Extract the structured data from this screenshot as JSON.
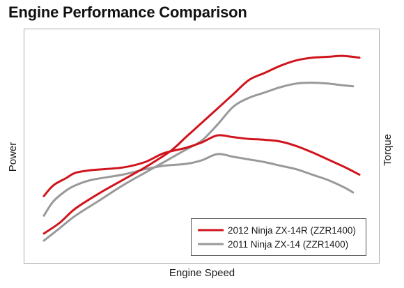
{
  "chart_data": {
    "type": "line",
    "title": "Engine Performance Comparison",
    "xlabel": "Engine Speed",
    "ylabel": "Power",
    "y2label": "Torque",
    "legend_position": "bottom-right",
    "grid": false,
    "xlim": [
      0,
      100
    ],
    "ylim": [
      0,
      100
    ],
    "series": [
      {
        "name": "2012 Ninja ZX-14R (ZZR1400)",
        "metric": "Power",
        "color": "#d0141c",
        "x": [
          0,
          5,
          10,
          18,
          25,
          32,
          40,
          45,
          50,
          55,
          60,
          65,
          70,
          75,
          80,
          85,
          90,
          95,
          100
        ],
        "y": [
          2,
          8,
          16,
          25,
          32,
          39,
          48,
          56,
          64,
          72,
          80,
          88,
          92,
          96,
          99,
          100.5,
          101,
          101.5,
          100.5
        ]
      },
      {
        "name": "2011 Ninja ZX-14 (ZZR1400)",
        "metric": "Power",
        "color": "#999999",
        "x": [
          0,
          5,
          10,
          18,
          25,
          32,
          40,
          45,
          50,
          55,
          60,
          65,
          70,
          75,
          80,
          85,
          90,
          95,
          98
        ],
        "y": [
          -2,
          5,
          12,
          21,
          29,
          36,
          44,
          49,
          54,
          63,
          73,
          78,
          81,
          84,
          86,
          86.5,
          86,
          85,
          84.5
        ]
      },
      {
        "name": "2012 Ninja ZX-14R (ZZR1400)",
        "metric": "Torque",
        "color": "#d0141c",
        "x": [
          0,
          3,
          7,
          10,
          15,
          25,
          32,
          38,
          45,
          50,
          55,
          60,
          65,
          70,
          75,
          80,
          85,
          90,
          95,
          100
        ],
        "y": [
          23,
          29,
          33,
          36,
          37.5,
          39,
          42,
          47,
          50,
          53,
          57,
          56,
          55,
          54.5,
          53.5,
          51,
          47.5,
          43.5,
          39.5,
          35
        ]
      },
      {
        "name": "2011 Ninja ZX-14 (ZZR1400)",
        "metric": "Torque",
        "color": "#999999",
        "x": [
          0,
          3,
          7,
          10,
          15,
          25,
          32,
          38,
          45,
          50,
          55,
          60,
          65,
          70,
          75,
          80,
          85,
          90,
          95,
          98
        ],
        "y": [
          12,
          20,
          26,
          29,
          32,
          35,
          38,
          40,
          41,
          43,
          46.5,
          45,
          43.5,
          42,
          40,
          38,
          35,
          32,
          28,
          25
        ]
      }
    ],
    "legend": [
      {
        "label": "2012 Ninja ZX-14R (ZZR1400)",
        "color": "#d0141c"
      },
      {
        "label": "2011 Ninja ZX-14 (ZZR1400)",
        "color": "#999999"
      }
    ]
  }
}
